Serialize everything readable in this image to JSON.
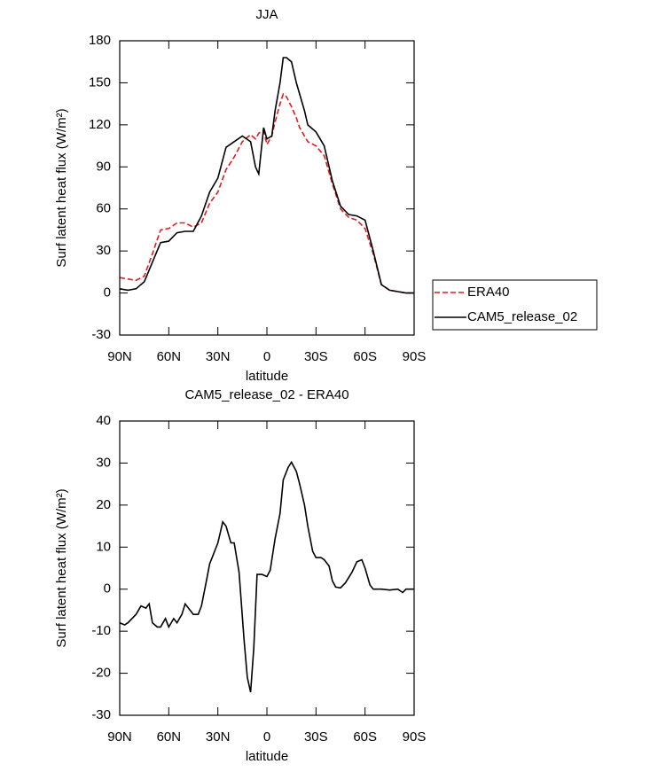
{
  "chart_data": [
    {
      "type": "line",
      "title": "JJA",
      "xlabel": "latitude",
      "ylabel": "Surf latent heat flux (W/m²)",
      "x": [
        90,
        85,
        80,
        75,
        70,
        65,
        60,
        55,
        50,
        45,
        40,
        35,
        30,
        25,
        20,
        15,
        10,
        7,
        5,
        2,
        0,
        -3,
        -5,
        -8,
        -10,
        -12,
        -15,
        -18,
        -20,
        -23,
        -25,
        -30,
        -35,
        -40,
        -45,
        -50,
        -55,
        -60,
        -65,
        -70,
        -75,
        -80,
        -85,
        -90
      ],
      "series": [
        {
          "name": "ERA40",
          "color": "#e41a1c",
          "linestyle": "dashed",
          "values": [
            11,
            10,
            9,
            12,
            28,
            45,
            46,
            50,
            50,
            47,
            50,
            64,
            72,
            88,
            97,
            108,
            113,
            110,
            114,
            116,
            106,
            112,
            122,
            135,
            142,
            140,
            133,
            125,
            118,
            112,
            108,
            105,
            98,
            78,
            60,
            54,
            52,
            46,
            28,
            6,
            2,
            1,
            0,
            0
          ]
        },
        {
          "name": "CAM5_release_02",
          "color": "#000000",
          "linestyle": "solid",
          "values": [
            3,
            2,
            3,
            8,
            22,
            36,
            37,
            43,
            44,
            44,
            55,
            72,
            82,
            104,
            108,
            112,
            108,
            90,
            85,
            118,
            110,
            112,
            130,
            150,
            168,
            168,
            165,
            150,
            142,
            130,
            120,
            115,
            105,
            80,
            62,
            56,
            55,
            52,
            30,
            6,
            2,
            1,
            0,
            0
          ]
        }
      ],
      "xlim": [
        90,
        -90
      ],
      "xticks": [
        {
          "value": 90,
          "label": "90N"
        },
        {
          "value": 60,
          "label": "60N"
        },
        {
          "value": 30,
          "label": "30N"
        },
        0,
        {
          "value": -30,
          "label": "30S"
        },
        {
          "value": -60,
          "label": "60S"
        },
        {
          "value": -90,
          "label": "90S"
        }
      ],
      "ylim": [
        -30,
        180
      ],
      "yticks": [
        -30,
        0,
        30,
        60,
        90,
        120,
        150,
        180
      ],
      "legend": "right"
    },
    {
      "type": "line",
      "title": "CAM5_release_02 - ERA40",
      "xlabel": "latitude",
      "ylabel": "Surf latent heat flux (W/m²)",
      "x": [
        90,
        87,
        85,
        80,
        77,
        74,
        72,
        70,
        67,
        65,
        62,
        60,
        57,
        55,
        52,
        50,
        47,
        45,
        42,
        40,
        37,
        35,
        30,
        27,
        25,
        22,
        20,
        17,
        14,
        12,
        10,
        8,
        6,
        3,
        0,
        -2,
        -5,
        -8,
        -10,
        -13,
        -15,
        -18,
        -20,
        -23,
        -25,
        -28,
        -30,
        -33,
        -35,
        -38,
        -40,
        -42,
        -45,
        -48,
        -52,
        -55,
        -58,
        -60,
        -63,
        -65,
        -70,
        -75,
        -80,
        -83,
        -85,
        -90
      ],
      "series": [
        {
          "color": "#000000",
          "linestyle": "solid",
          "values": [
            -8,
            -8.5,
            -8,
            -6,
            -4,
            -4.5,
            -3.5,
            -8,
            -9,
            -9,
            -7,
            -9,
            -7,
            -8,
            -6,
            -3.5,
            -5,
            -6,
            -6,
            -4,
            2,
            6,
            11,
            16,
            15,
            11,
            11,
            4,
            -12,
            -21,
            -24.5,
            -14,
            3.5,
            3.5,
            3,
            4.5,
            12,
            18,
            26,
            29,
            30.2,
            28,
            25,
            20,
            15,
            9,
            7.5,
            7.5,
            7,
            5.5,
            2,
            0.5,
            0.3,
            1.5,
            4,
            6.5,
            7,
            5,
            1,
            0,
            0,
            -0.2,
            0,
            -0.8,
            0,
            0
          ]
        }
      ],
      "xlim": [
        90,
        -90
      ],
      "xticks": [
        {
          "value": 90,
          "label": "90N"
        },
        {
          "value": 60,
          "label": "60N"
        },
        {
          "value": 30,
          "label": "30N"
        },
        0,
        {
          "value": -30,
          "label": "30S"
        },
        {
          "value": -60,
          "label": "60S"
        },
        {
          "value": -90,
          "label": "90S"
        }
      ],
      "ylim": [
        -30,
        40
      ],
      "yticks": [
        -30,
        -20,
        -10,
        0,
        10,
        20,
        30,
        40
      ]
    }
  ]
}
